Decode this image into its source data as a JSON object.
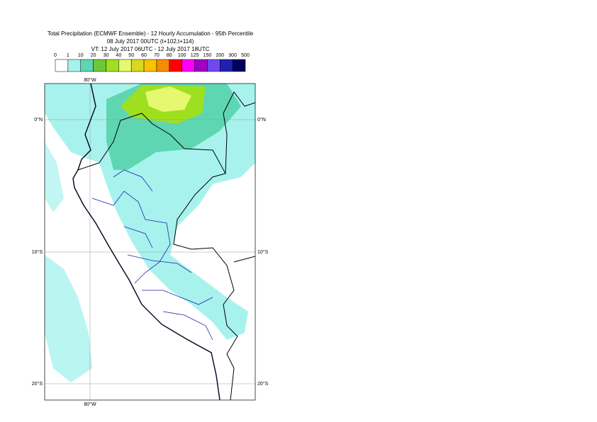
{
  "title": [
    "Total Precipitation (ECMWF Ensemble) - 12 Hourly Accumulation - 95th Percentile",
    "08 July 2017 00UTC (t+102,t+114)",
    "VT: 12 July 2017 06UTC - 12 July 2017 18UTC"
  ],
  "legend": {
    "labels": [
      0,
      1,
      10,
      20,
      30,
      40,
      50,
      60,
      70,
      80,
      100,
      125,
      150,
      200,
      300,
      500
    ],
    "colors": [
      "#ffffff",
      "#a8f2ee",
      "#5ed6b2",
      "#6cc83a",
      "#9ee020",
      "#e6f870",
      "#d8d820",
      "#f8c400",
      "#f88c00",
      "#ff0000",
      "#ff00ff",
      "#a000c8",
      "#7048f0",
      "#2020b0",
      "#000060"
    ]
  },
  "map": {
    "top_label": "80°W",
    "bottom_label": "80°W",
    "left_labels": [
      "0°N",
      "10°S",
      "20°S"
    ],
    "right_labels": [
      "0°N",
      "10°S",
      "20°S"
    ]
  }
}
